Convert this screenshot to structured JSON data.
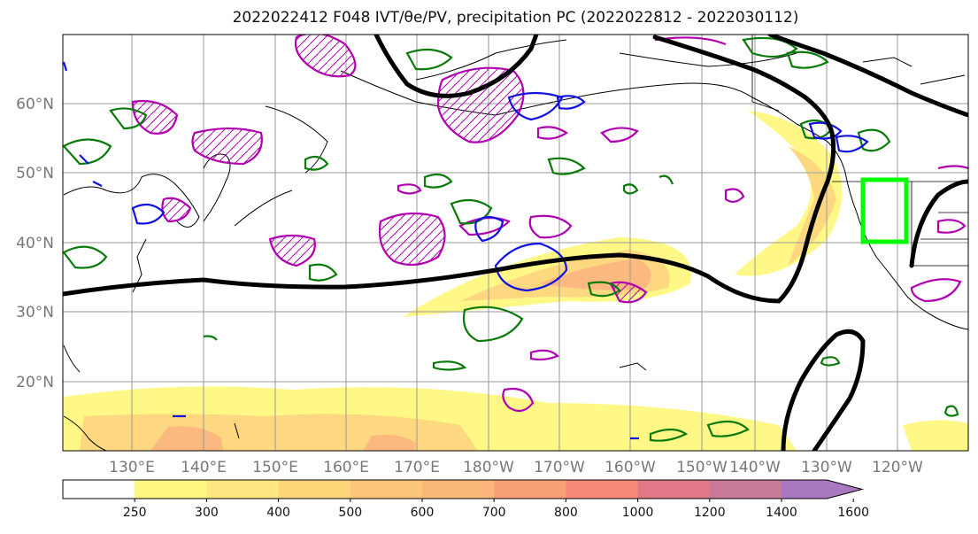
{
  "title": "2022022412 F048 IVT/θe/PV, precipitation PC (2022022812 - 2022030112)",
  "map": {
    "lat_labels": [
      "60°N",
      "50°N",
      "40°N",
      "30°N",
      "20°N"
    ],
    "lon_labels": [
      "130°E",
      "140°E",
      "150°E",
      "160°E",
      "170°E",
      "180°W",
      "170°W",
      "160°W",
      "150°W",
      "140°W",
      "130°W",
      "120°W"
    ],
    "highlight_box_color": "#00ff00",
    "contour_colors": {
      "pv": "#b000b0",
      "theta_e_green": "#0a7a0a",
      "theta_e_blue": "#1010e0",
      "ivt_jet": "#000000"
    }
  },
  "colorbar": {
    "ticks": [
      "250",
      "300",
      "400",
      "500",
      "600",
      "700",
      "800",
      "1000",
      "1200",
      "1400",
      "1600"
    ],
    "colors": [
      "#ffffff",
      "#fff880",
      "#fee680",
      "#fdd67a",
      "#fcc67a",
      "#fbb67a",
      "#faa078",
      "#f88a78",
      "#e07888",
      "#c87a98",
      "#a878c0"
    ]
  }
}
